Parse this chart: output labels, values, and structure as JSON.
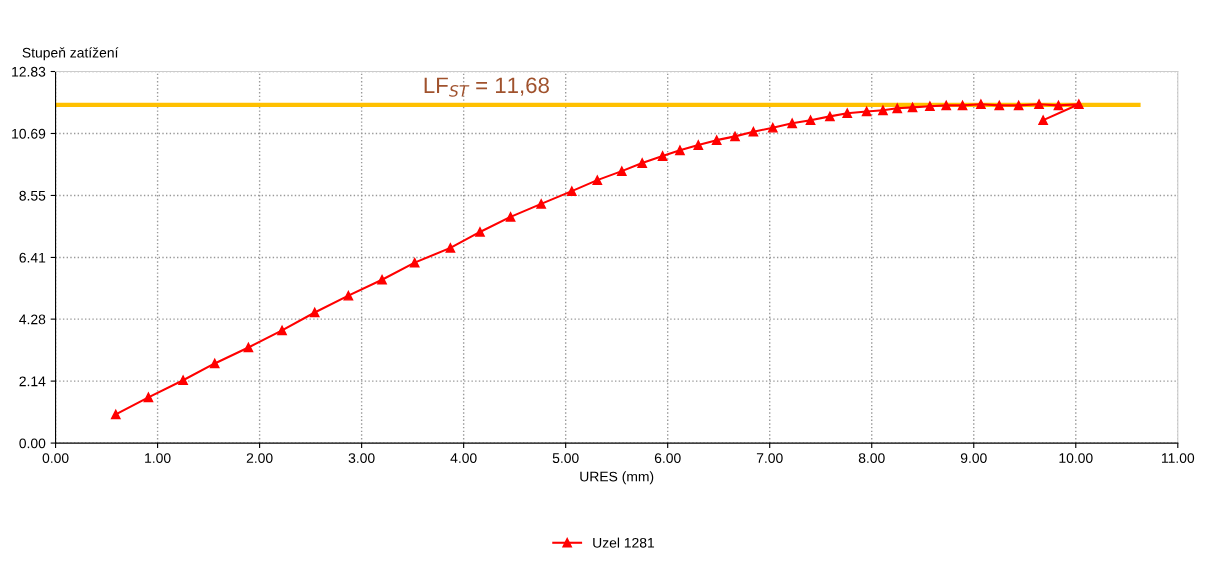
{
  "chart_data": {
    "type": "line",
    "xlabel": "URES (mm)",
    "ylabel": "Stupeň zatížení",
    "xlim": [
      0,
      11
    ],
    "ylim": [
      0,
      12.83
    ],
    "xticks": [
      {
        "value": 0,
        "label": "0.00"
      },
      {
        "value": 1,
        "label": "1.00"
      },
      {
        "value": 2,
        "label": "2.00"
      },
      {
        "value": 3,
        "label": "3.00"
      },
      {
        "value": 4,
        "label": "4.00"
      },
      {
        "value": 5,
        "label": "5.00"
      },
      {
        "value": 6,
        "label": "6.00"
      },
      {
        "value": 7,
        "label": "7.00"
      },
      {
        "value": 8,
        "label": "8.00"
      },
      {
        "value": 9,
        "label": "9.00"
      },
      {
        "value": 10,
        "label": "10.00"
      },
      {
        "value": 11,
        "label": "11.00"
      }
    ],
    "yticks": [
      {
        "value": 0,
        "label": "0.00"
      },
      {
        "value": 2.14,
        "label": "2.14"
      },
      {
        "value": 4.28,
        "label": "4.28"
      },
      {
        "value": 6.41,
        "label": "6.41"
      },
      {
        "value": 8.55,
        "label": "8.55"
      },
      {
        "value": 10.69,
        "label": "10.69"
      },
      {
        "value": 12.83,
        "label": "12.83"
      }
    ],
    "grid": true,
    "legend": "bottom",
    "marker": "triangle",
    "line_style": "solid",
    "series": [
      {
        "name": "Uzel 1281",
        "color": "#ff0000",
        "x": [
          0.59,
          0.91,
          1.25,
          1.56,
          1.89,
          2.22,
          2.54,
          2.87,
          3.2,
          3.52,
          3.87,
          4.16,
          4.46,
          4.76,
          5.06,
          5.31,
          5.55,
          5.75,
          5.95,
          6.12,
          6.3,
          6.48,
          6.66,
          6.84,
          7.03,
          7.22,
          7.4,
          7.59,
          7.76,
          7.95,
          8.11,
          8.25,
          8.4,
          8.57,
          8.73,
          8.89,
          9.07,
          9.25,
          9.44,
          9.64,
          9.83,
          10.03,
          9.68
        ],
        "values": [
          0.99,
          1.58,
          2.17,
          2.75,
          3.3,
          3.89,
          4.51,
          5.09,
          5.64,
          6.23,
          6.74,
          7.29,
          7.81,
          8.26,
          8.7,
          9.08,
          9.39,
          9.67,
          9.91,
          10.11,
          10.29,
          10.46,
          10.59,
          10.75,
          10.89,
          11.04,
          11.15,
          11.28,
          11.39,
          11.45,
          11.49,
          11.56,
          11.59,
          11.63,
          11.66,
          11.66,
          11.7,
          11.66,
          11.66,
          11.7,
          11.66,
          11.7,
          11.15
        ]
      }
    ],
    "ref_lines": [
      {
        "axis": "y",
        "value": 11.68,
        "label": "LF$_{ST}$ = 11,68",
        "color": "#ffc000"
      }
    ]
  }
}
